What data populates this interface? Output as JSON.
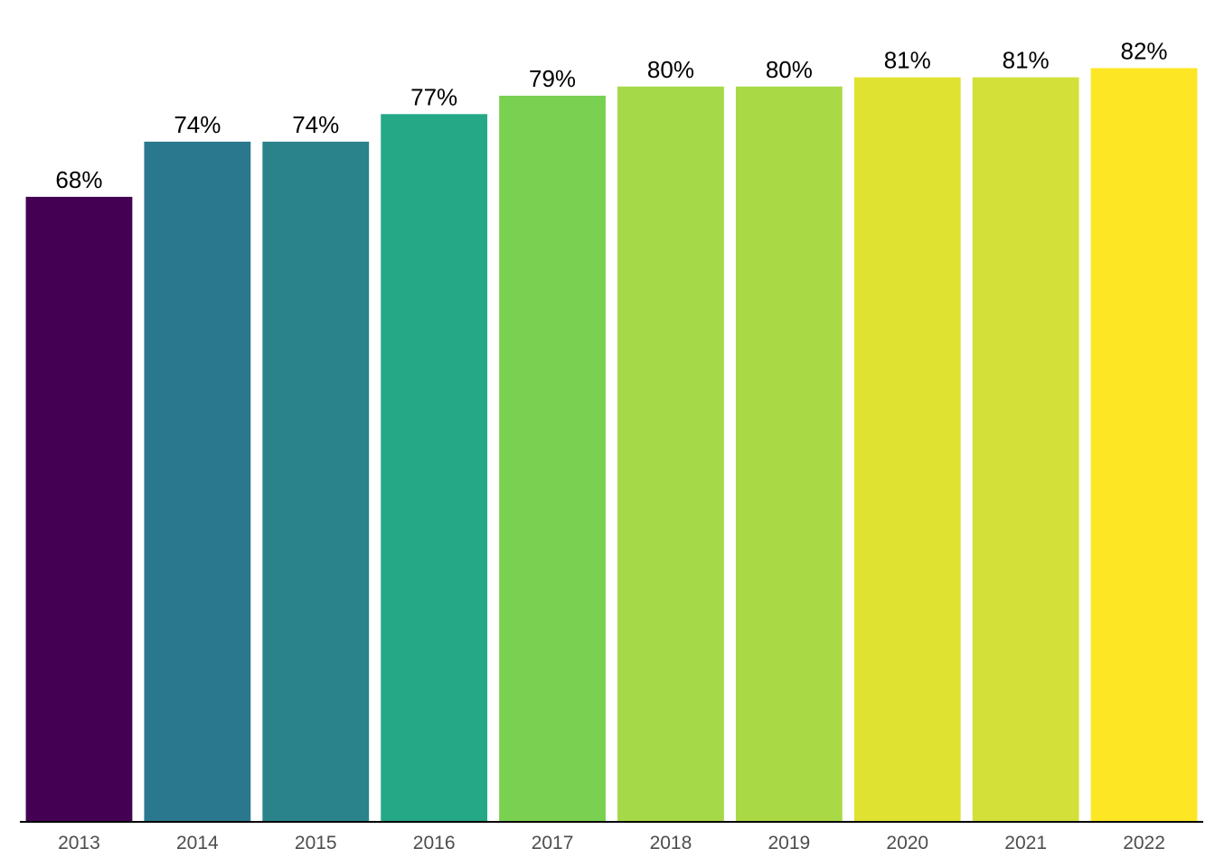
{
  "chart_data": {
    "type": "bar",
    "categories": [
      "2013",
      "2014",
      "2015",
      "2016",
      "2017",
      "2018",
      "2019",
      "2020",
      "2021",
      "2022"
    ],
    "values": [
      68,
      74,
      74,
      77,
      79,
      80,
      80,
      81,
      81,
      82
    ],
    "value_labels": [
      "68%",
      "74%",
      "74%",
      "77%",
      "79%",
      "80%",
      "80%",
      "81%",
      "81%",
      "82%"
    ],
    "colors": [
      "#440154",
      "#2A788E",
      "#2A838B",
      "#25A886",
      "#7AD151",
      "#A5D947",
      "#AAD946",
      "#E0E232",
      "#D3E03A",
      "#FDE725"
    ],
    "title": "",
    "xlabel": "",
    "ylabel": "",
    "ylim": [
      0,
      84.5
    ],
    "grid": false,
    "axis_line_color": "#000000",
    "tick_label_color": "#4D4D4D",
    "value_label_color": "#000000"
  }
}
